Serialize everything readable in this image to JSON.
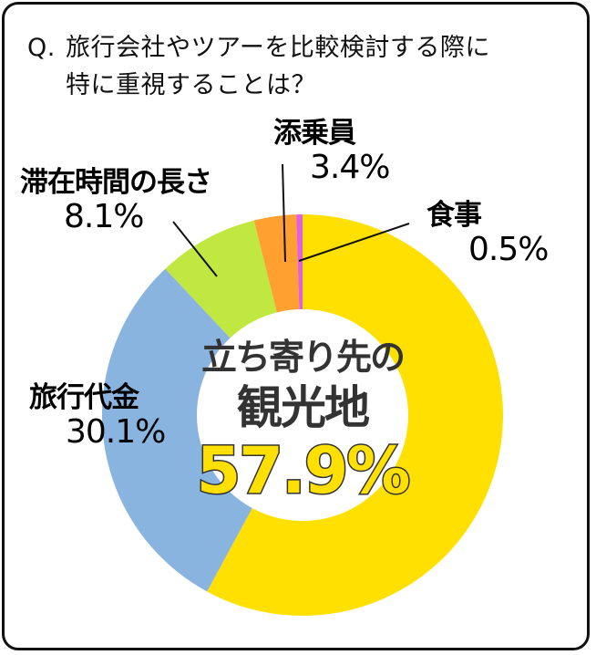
{
  "question": {
    "prefix": "Q.",
    "line1": "旅行会社やツアーを比較検討する際に",
    "line2": "特に重視することは？"
  },
  "center": {
    "line1": "立ち寄り先の",
    "line2": "観光地",
    "value": "57.9%"
  },
  "labels": {
    "sightseeing": {
      "name": "立ち寄り先の観光地",
      "pct": "57.9%"
    },
    "price": {
      "name": "旅行代金",
      "pct": "30.1%"
    },
    "stay": {
      "name": "滞在時間の長さ",
      "pct": "8.1%"
    },
    "guide": {
      "name": "添乗員",
      "pct": "3.4%"
    },
    "meal": {
      "name": "食事",
      "pct": "0.5%"
    }
  },
  "colors": {
    "sightseeing": "#FFE000",
    "price": "#8AB4E0",
    "stay": "#C0E840",
    "guide": "#FFA030",
    "meal": "#E060E0"
  },
  "chart_data": {
    "type": "pie",
    "subtype": "donut",
    "title": "Q. 旅行会社やツアーを比較検討する際に特に重視することは？",
    "categories": [
      "立ち寄り先の観光地",
      "旅行代金",
      "滞在時間の長さ",
      "添乗員",
      "食事"
    ],
    "values": [
      57.9,
      30.1,
      8.1,
      3.4,
      0.5
    ],
    "unit": "%",
    "start_angle": "12 o'clock, clockwise",
    "colors": [
      "#FFE000",
      "#8AB4E0",
      "#C0E840",
      "#FFA030",
      "#E060E0"
    ],
    "center_label": "立ち寄り先の観光地 57.9%",
    "legend": "none (direct labels with leader lines)"
  }
}
